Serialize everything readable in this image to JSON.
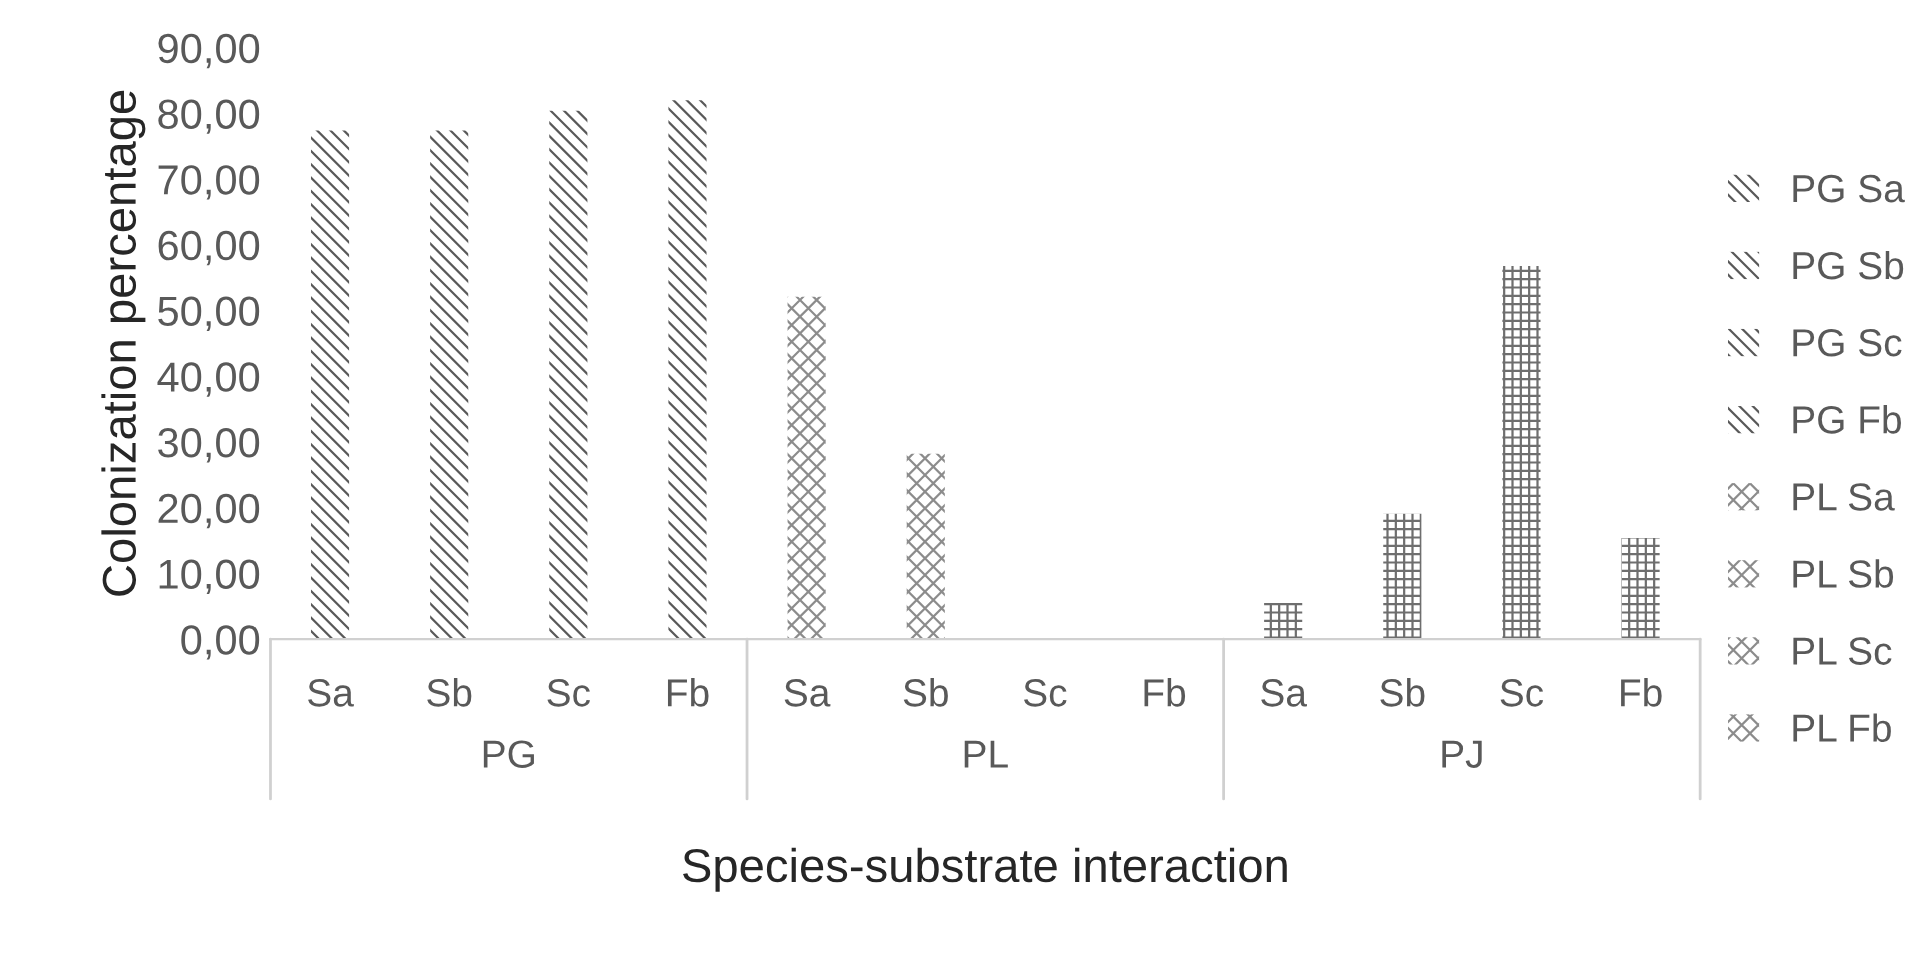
{
  "chart_data": {
    "type": "bar",
    "xlabel": "Species-substrate interaction",
    "ylabel": "Colonization percentage",
    "categories": [
      "Sa",
      "Sb",
      "Sc",
      "Fb",
      "Sa",
      "Sb",
      "Sc",
      "Fb",
      "Sa",
      "Sb",
      "Sc",
      "Fb"
    ],
    "annotations": [
      "PG",
      "PL",
      "PJ"
    ],
    "series": [
      {
        "name": "PG Sa",
        "color": "#595959",
        "values": [
          77.4,
          null,
          null,
          null,
          null,
          null,
          null,
          null,
          null,
          null,
          null,
          null
        ]
      },
      {
        "name": "PG Sb",
        "color": "#595959",
        "values": [
          null,
          77.4,
          null,
          null,
          null,
          null,
          null,
          null,
          null,
          null,
          null,
          null
        ]
      },
      {
        "name": "PG Sc",
        "color": "#595959",
        "values": [
          null,
          null,
          80.4,
          null,
          null,
          null,
          null,
          null,
          null,
          null,
          null,
          null
        ]
      },
      {
        "name": "PG Fb",
        "color": "#595959",
        "values": [
          null,
          null,
          null,
          82.0,
          null,
          null,
          null,
          null,
          null,
          null,
          null,
          null
        ]
      },
      {
        "name": "PL Sa",
        "color": "#8c8c8c",
        "values": [
          null,
          null,
          null,
          null,
          52.1,
          null,
          null,
          null,
          null,
          null,
          null,
          null
        ]
      },
      {
        "name": "PL Sb",
        "color": "#8c8c8c",
        "values": [
          null,
          null,
          null,
          null,
          null,
          28.2,
          null,
          null,
          null,
          null,
          null,
          null
        ]
      },
      {
        "name": "PL Sc",
        "color": "#8c8c8c",
        "values": [
          null,
          null,
          null,
          null,
          null,
          null,
          0,
          null,
          null,
          null,
          null,
          null
        ]
      },
      {
        "name": "PL Fb",
        "color": "#8c8c8c",
        "values": [
          null,
          null,
          null,
          null,
          null,
          null,
          null,
          0,
          null,
          null,
          null,
          null
        ]
      },
      {
        "color": "#6e6e6e",
        "values": [
          null,
          null,
          null,
          null,
          null,
          null,
          null,
          null,
          5.5,
          null,
          null,
          null
        ]
      },
      {
        "color": "#6e6e6e",
        "values": [
          null,
          null,
          null,
          null,
          null,
          null,
          null,
          null,
          null,
          19.1,
          null,
          null
        ]
      },
      {
        "color": "#6e6e6e",
        "values": [
          null,
          null,
          null,
          null,
          null,
          null,
          null,
          null,
          null,
          null,
          56.8,
          null
        ]
      },
      {
        "color": "#6e6e6e",
        "values": [
          null,
          null,
          null,
          null,
          null,
          null,
          null,
          null,
          null,
          null,
          null,
          15.4
        ]
      }
    ],
    "ylim": [
      0,
      90
    ],
    "yticks": [
      {
        "value": 0,
        "label": "0,00"
      },
      {
        "value": 10,
        "label": "10,00"
      },
      {
        "value": 20,
        "label": "20,00"
      },
      {
        "value": 30,
        "label": "30,00"
      },
      {
        "value": 40,
        "label": "40,00"
      },
      {
        "value": 50,
        "label": "50,00"
      },
      {
        "value": 60,
        "label": "60,00"
      },
      {
        "value": 70,
        "label": "70,00"
      },
      {
        "value": 80,
        "label": "80,00"
      },
      {
        "value": 90,
        "label": "90,00"
      }
    ],
    "grid": false,
    "legend": "right"
  }
}
